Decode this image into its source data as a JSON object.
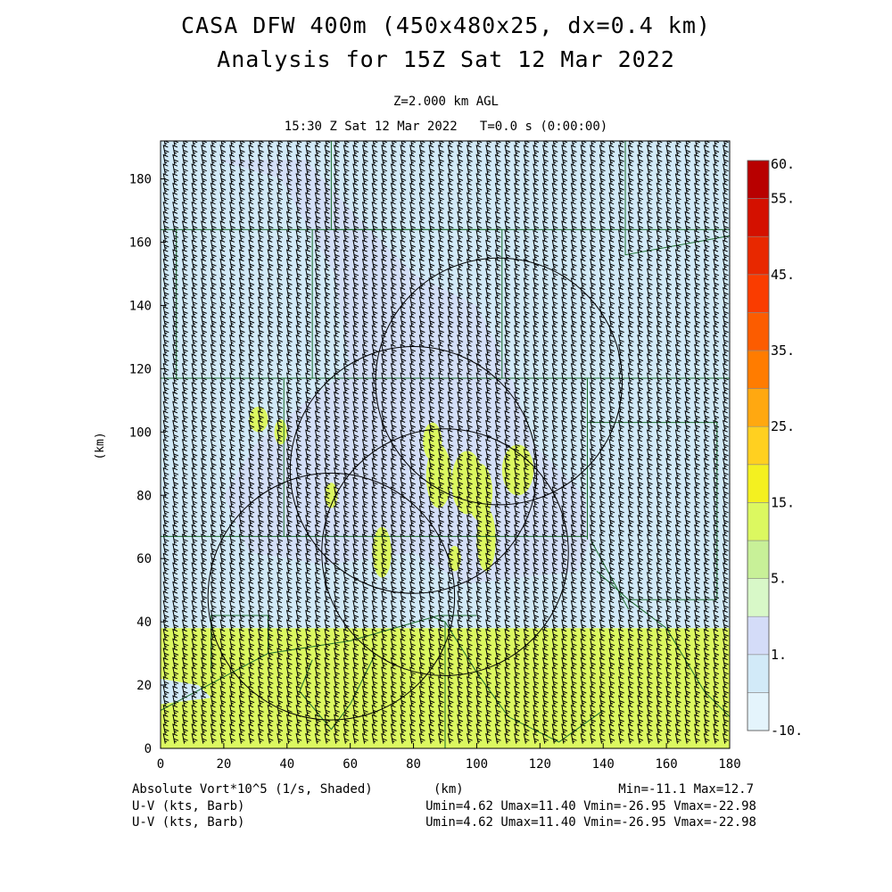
{
  "header": {
    "title_line1": "CASA DFW 400m (450x480x25, dx=0.4 km)",
    "title_line2": "Analysis for 15Z Sat 12 Mar 2022",
    "level": "Z=2.000 km AGL",
    "valid_time": "15:30 Z Sat 12 Mar 2022   T=0.0 s (0:00:00)"
  },
  "footer": {
    "field_label": "Absolute Vort*10^5 (1/s, Shaded)",
    "x_unit": "(km)",
    "minmax": "Min=-11.1 Max=12.7",
    "barb1_label": "U-V (kts, Barb)",
    "barb1_stats": "Umin=4.62 Umax=11.40 Vmin=-26.95 Vmax=-22.98",
    "barb2_label": "U-V (kts, Barb)",
    "barb2_stats": "Umin=4.62 Umax=11.40 Vmin=-26.95 Vmax=-22.98"
  },
  "chart_data": {
    "type": "heatmap",
    "xlabel": "(km)",
    "ylabel": "(km)",
    "xlim": [
      0,
      180
    ],
    "ylim": [
      0,
      192
    ],
    "x_ticks": [
      0,
      20,
      40,
      60,
      80,
      100,
      120,
      140,
      160,
      180
    ],
    "y_ticks": [
      0,
      20,
      40,
      60,
      80,
      100,
      120,
      140,
      160,
      180
    ],
    "colorbar": {
      "levels": [
        -10,
        -5,
        1,
        2.5,
        5,
        10,
        15,
        20,
        25,
        30,
        35,
        40,
        45,
        50,
        55,
        60
      ],
      "labels": [
        "-10.",
        "1.",
        "5.",
        "15.",
        "25.",
        "35.",
        "45.",
        "55.",
        "60."
      ],
      "colors": [
        "#e4f4fc",
        "#d2eaf8",
        "#d4dcf8",
        "#d8f8c8",
        "#c8f098",
        "#dcf860",
        "#f4f020",
        "#ffd020",
        "#ffa810",
        "#ff7c00",
        "#fc5c00",
        "#fa3c00",
        "#e82800",
        "#d41000",
        "#b80000"
      ]
    },
    "regions": [
      {
        "name": "background",
        "value": -5
      },
      {
        "name": "southern band (y 0-38 km)",
        "value": 10
      },
      {
        "name": "west-central positive area",
        "value": 1
      },
      {
        "name": "central small patches",
        "value": 10
      }
    ],
    "wind_barbs": {
      "u_kts": [
        4.62,
        11.4
      ],
      "v_kts": [
        -26.95,
        -22.98
      ],
      "spacing_km": 3
    },
    "radar_range_rings": [
      {
        "center_km": [
          107,
          116
        ],
        "radius_km": 39
      },
      {
        "center_km": [
          80,
          88
        ],
        "radius_km": 39
      },
      {
        "center_km": [
          90,
          62
        ],
        "radius_km": 39
      },
      {
        "center_km": [
          54,
          48
        ],
        "radius_km": 39
      }
    ]
  }
}
